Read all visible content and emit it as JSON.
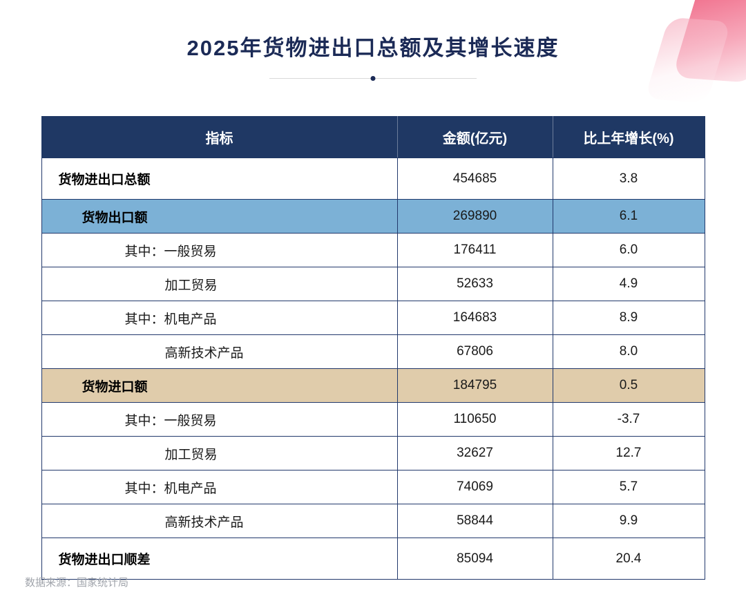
{
  "chart_data": {
    "type": "table",
    "title": "2025年货物进出口总额及其增长速度",
    "columns": [
      "指标",
      "金额(亿元)",
      "比上年增长(%)"
    ],
    "rows": [
      {
        "label": "货物进出口总额",
        "amount": "454685",
        "growth": "3.8",
        "style": "bold",
        "indent": 0
      },
      {
        "label": "货物出口额",
        "amount": "269890",
        "growth": "6.1",
        "style": "highlight-blue",
        "indent": 1
      },
      {
        "label": "其中：一般贸易",
        "amount": "176411",
        "growth": "6.0",
        "style": "",
        "indent": 2
      },
      {
        "label": "加工贸易",
        "amount": "52633",
        "growth": "4.9",
        "style": "",
        "indent": 3
      },
      {
        "label": "其中：机电产品",
        "amount": "164683",
        "growth": "8.9",
        "style": "",
        "indent": 2
      },
      {
        "label": "高新技术产品",
        "amount": "67806",
        "growth": "8.0",
        "style": "",
        "indent": 3
      },
      {
        "label": "货物进口额",
        "amount": "184795",
        "growth": "0.5",
        "style": "highlight-tan",
        "indent": 1
      },
      {
        "label": "其中：一般贸易",
        "amount": "110650",
        "growth": "-3.7",
        "style": "",
        "indent": 2
      },
      {
        "label": "加工贸易",
        "amount": "32627",
        "growth": "12.7",
        "style": "",
        "indent": 3
      },
      {
        "label": "其中：机电产品",
        "amount": "74069",
        "growth": "5.7",
        "style": "",
        "indent": 2
      },
      {
        "label": "高新技术产品",
        "amount": "58844",
        "growth": "9.9",
        "style": "",
        "indent": 3
      },
      {
        "label": "货物进出口顺差",
        "amount": "85094",
        "growth": "20.4",
        "style": "bold",
        "indent": 0
      }
    ]
  },
  "source_note": "数据来源：国家统计局",
  "colors": {
    "title_text": "#1b2a56",
    "header_bg": "#1f3864",
    "table_border": "#21386b",
    "row_blue": "#7cb1d6",
    "row_tan": "#e0ccab",
    "accent_pink": "#ee5d7d"
  }
}
